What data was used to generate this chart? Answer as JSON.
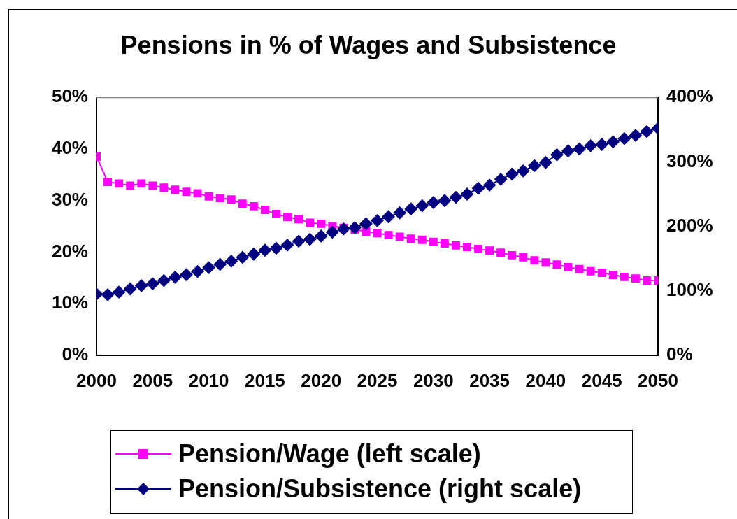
{
  "chart_data": {
    "type": "line",
    "title": "Pensions in % of Wages and Subsistence",
    "x": [
      2000,
      2001,
      2002,
      2003,
      2004,
      2005,
      2006,
      2007,
      2008,
      2009,
      2010,
      2011,
      2012,
      2013,
      2014,
      2015,
      2016,
      2017,
      2018,
      2019,
      2020,
      2021,
      2022,
      2023,
      2024,
      2025,
      2026,
      2027,
      2028,
      2029,
      2030,
      2031,
      2032,
      2033,
      2034,
      2035,
      2036,
      2037,
      2038,
      2039,
      2040,
      2041,
      2042,
      2043,
      2044,
      2045,
      2046,
      2047,
      2048,
      2049,
      2050
    ],
    "xlim": [
      2000,
      2050
    ],
    "xticks": [
      2000,
      2005,
      2010,
      2015,
      2020,
      2025,
      2030,
      2035,
      2040,
      2045,
      2050
    ],
    "ylim": [
      0,
      50
    ],
    "yticks": [
      {
        "value": 0,
        "label": "0%"
      },
      {
        "value": 10,
        "label": "10%"
      },
      {
        "value": 20,
        "label": "20%"
      },
      {
        "value": 30,
        "label": "30%"
      },
      {
        "value": 40,
        "label": "40%"
      },
      {
        "value": 50,
        "label": "50%"
      }
    ],
    "y2lim": [
      0,
      400
    ],
    "y2ticks": [
      {
        "value": 0,
        "label": "0%"
      },
      {
        "value": 100,
        "label": "100%"
      },
      {
        "value": 200,
        "label": "200%"
      },
      {
        "value": 300,
        "label": "300%"
      },
      {
        "value": 400,
        "label": "400%"
      }
    ],
    "grid": false,
    "legend": "bottom",
    "series": [
      {
        "name": "Pension/Wage (left scale)",
        "color": "#ff00ff",
        "marker": "square",
        "values": [
          38.5,
          33.6,
          33.3,
          32.9,
          33.3,
          32.9,
          32.5,
          32.1,
          31.7,
          31.4,
          30.8,
          30.5,
          30.2,
          29.4,
          28.9,
          28.2,
          27.4,
          26.8,
          26.4,
          25.7,
          25.5,
          25.1,
          24.7,
          24.4,
          24.0,
          23.7,
          23.3,
          23.0,
          22.6,
          22.4,
          22.0,
          21.7,
          21.3,
          21.0,
          20.6,
          20.3,
          19.9,
          19.4,
          19.0,
          18.4,
          18.0,
          17.6,
          17.1,
          16.7,
          16.3,
          16.0,
          15.6,
          15.2,
          14.9,
          14.5,
          14.5
        ]
      },
      {
        "name": "Pension/Subsistence (right scale)",
        "color": "#000080",
        "marker": "diamond",
        "axis": "y2",
        "values": [
          95,
          94,
          98,
          103,
          108,
          111,
          116,
          121,
          125,
          130,
          136,
          141,
          146,
          152,
          157,
          163,
          166,
          171,
          177,
          180,
          185,
          191,
          196,
          198,
          204,
          209,
          215,
          221,
          227,
          232,
          237,
          240,
          245,
          250,
          259,
          264,
          273,
          281,
          286,
          294,
          299,
          311,
          317,
          320,
          325,
          327,
          331,
          336,
          341,
          347,
          352
        ]
      }
    ]
  }
}
